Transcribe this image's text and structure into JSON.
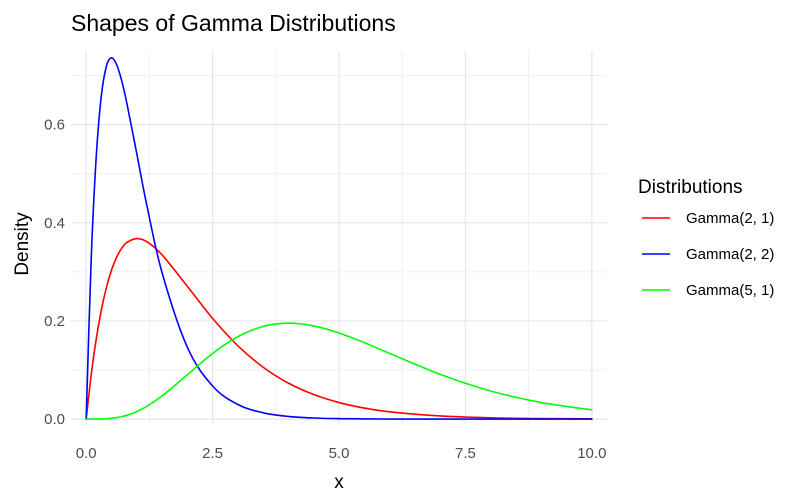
{
  "chart_data": {
    "type": "line",
    "title": "Shapes of Gamma Distributions",
    "xlabel": "x",
    "ylabel": "Density",
    "xlim": [
      -0.3,
      10.3
    ],
    "ylim": [
      -0.01,
      0.75
    ],
    "x_ticks": [
      0,
      2.5,
      5,
      7.5,
      10
    ],
    "x_tick_labels": [
      "0.0",
      "2.5",
      "5.0",
      "7.5",
      "10.0"
    ],
    "y_ticks": [
      0,
      0.2,
      0.4,
      0.6
    ],
    "y_tick_labels": [
      "0.0",
      "0.2",
      "0.4",
      "0.6"
    ],
    "grid": true,
    "legend": {
      "title": "Distributions",
      "placement": "right"
    },
    "x": [
      0,
      0.1,
      0.2,
      0.3,
      0.4,
      0.5,
      0.6,
      0.7,
      0.8,
      1.0,
      1.2,
      1.5,
      2.0,
      2.5,
      3.0,
      3.5,
      4.0,
      4.5,
      5.0,
      5.5,
      6.0,
      7.0,
      8.0,
      9.0,
      10.0
    ],
    "series": [
      {
        "name": "Gamma(2, 1)",
        "color": "#ff0000",
        "values": [
          0,
          0.0905,
          0.1637,
          0.2222,
          0.2681,
          0.3033,
          0.3293,
          0.3476,
          0.3595,
          0.3679,
          0.3614,
          0.3347,
          0.2707,
          0.2052,
          0.1494,
          0.1057,
          0.0733,
          0.05,
          0.0337,
          0.0225,
          0.0149,
          0.0064,
          0.0027,
          0.0011,
          0.0005
        ]
      },
      {
        "name": "Gamma(2, 2)",
        "color": "#0000ff",
        "values": [
          0,
          0.3275,
          0.5363,
          0.6586,
          0.7189,
          0.7358,
          0.7229,
          0.6905,
          0.6459,
          0.5413,
          0.4355,
          0.2987,
          0.1465,
          0.0674,
          0.0297,
          0.0128,
          0.0054,
          0.0022,
          0.0009,
          0.0004,
          0.0001,
          0,
          0,
          0,
          0
        ]
      },
      {
        "name": "Gamma(5, 1)",
        "color": "#00ff00",
        "values": [
          0,
          0,
          0.0001,
          0.0003,
          0.0007,
          0.0016,
          0.003,
          0.005,
          0.0077,
          0.0153,
          0.026,
          0.0471,
          0.0902,
          0.1336,
          0.168,
          0.1888,
          0.1954,
          0.1898,
          0.1755,
          0.1558,
          0.1339,
          0.0912,
          0.0573,
          0.0337,
          0.0189
        ]
      }
    ]
  }
}
